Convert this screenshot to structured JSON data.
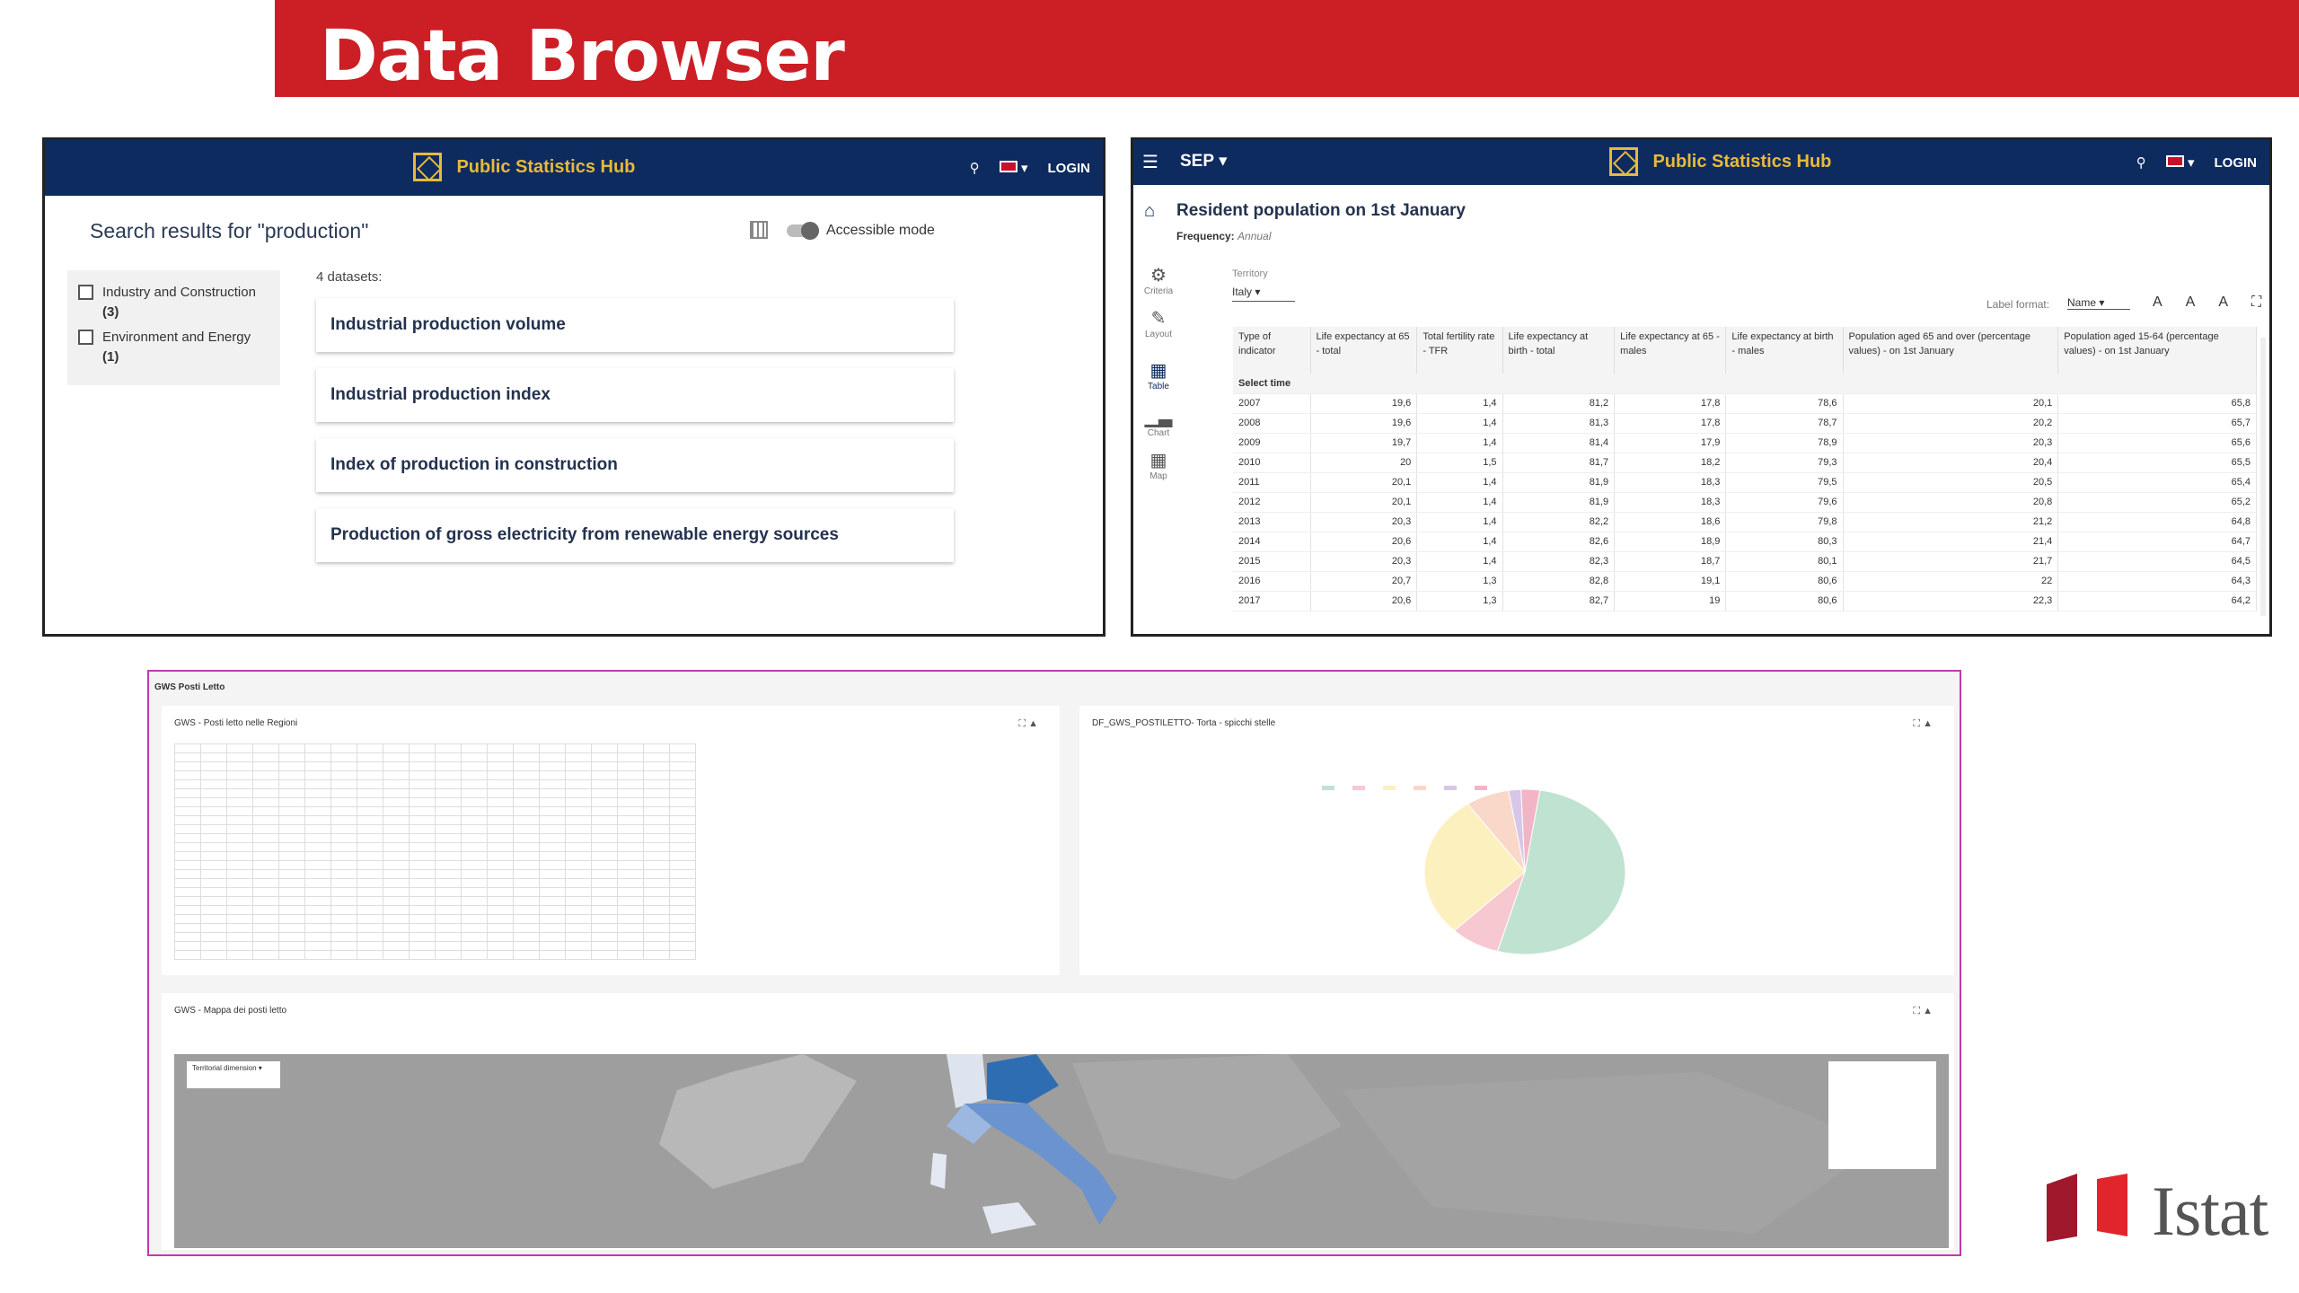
{
  "banner": {
    "title": "Data Browser"
  },
  "hub": {
    "title": "Public Statistics Hub",
    "login": "LOGIN"
  },
  "search": {
    "title": "Search results for \"production\"",
    "accessible": "Accessible mode",
    "filters": [
      {
        "label": "Industry and Construction",
        "count": "(3)"
      },
      {
        "label": "Environment and Energy",
        "count": "(1)"
      }
    ],
    "count": "4 datasets:",
    "datasets": [
      "Industrial production volume",
      "Industrial production index",
      "Index of production in construction",
      "Production of gross electricity from renewable energy sources"
    ]
  },
  "viewer": {
    "sep": "SEP",
    "title": "Resident population on 1st January",
    "frequency_label": "Frequency:",
    "frequency": "Annual",
    "side": [
      "Criteria",
      "Layout",
      "Table",
      "Chart",
      "Map"
    ],
    "territory_label": "Territory",
    "territory": "Italy",
    "label_format": "Label format:",
    "label_format_value": "Name",
    "columns": [
      "Type of indicator",
      "Life expectancy at 65 - total",
      "Total fertility rate - TFR",
      "Life expectancy at birth - total",
      "Life expectancy at 65 - males",
      "Life expectancy at birth - males",
      "Population aged 65 and over (percentage values) - on 1st January",
      "Population aged 15-64 (percentage values) - on 1st January"
    ],
    "select_time": "Select time",
    "rows": [
      [
        "2007",
        "19,6",
        "1,4",
        "81,2",
        "17,8",
        "78,6",
        "20,1",
        "65,8"
      ],
      [
        "2008",
        "19,6",
        "1,4",
        "81,3",
        "17,8",
        "78,7",
        "20,2",
        "65,7"
      ],
      [
        "2009",
        "19,7",
        "1,4",
        "81,4",
        "17,9",
        "78,9",
        "20,3",
        "65,6"
      ],
      [
        "2010",
        "20",
        "1,5",
        "81,7",
        "18,2",
        "79,3",
        "20,4",
        "65,5"
      ],
      [
        "2011",
        "20,1",
        "1,4",
        "81,9",
        "18,3",
        "79,5",
        "20,5",
        "65,4"
      ],
      [
        "2012",
        "20,1",
        "1,4",
        "81,9",
        "18,3",
        "79,6",
        "20,8",
        "65,2"
      ],
      [
        "2013",
        "20,3",
        "1,4",
        "82,2",
        "18,6",
        "79,8",
        "21,2",
        "64,8"
      ],
      [
        "2014",
        "20,6",
        "1,4",
        "82,6",
        "18,9",
        "80,3",
        "21,4",
        "64,7"
      ],
      [
        "2015",
        "20,3",
        "1,4",
        "82,3",
        "18,7",
        "80,1",
        "21,7",
        "64,5"
      ],
      [
        "2016",
        "20,7",
        "1,3",
        "82,8",
        "19,1",
        "80,6",
        "22",
        "64,3"
      ],
      [
        "2017",
        "20,6",
        "1,3",
        "82,7",
        "19",
        "80,6",
        "22,3",
        "64,2"
      ]
    ]
  },
  "dashboard": {
    "title": "GWS Posti Letto",
    "p1_title": "GWS - Posti letto nelle Regioni",
    "p2_title": "DF_GWS_POSTILETTO- Torta - spicchi stelle",
    "p3_title": "GWS - Mappa dei posti letto",
    "pie_colors": [
      "#bfe3d0",
      "#f7c8cf",
      "#fdf0bf",
      "#f9d7c9",
      "#d7c6e8",
      "#f2b5c6"
    ],
    "pie_values": [
      52,
      8,
      28,
      7,
      2,
      3
    ]
  },
  "logo": {
    "text": "Istat"
  }
}
